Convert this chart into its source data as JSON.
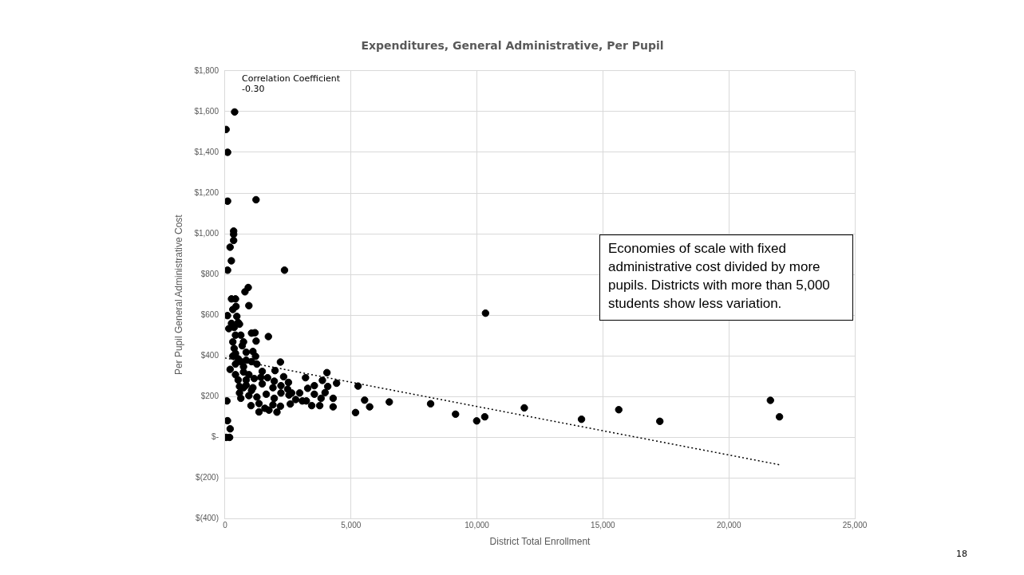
{
  "chart_data": {
    "type": "scatter",
    "title": "Expenditures, General Administrative, Per Pupil",
    "xlabel": "District Total Enrollment",
    "ylabel": "Per Pupil General Administrative Cost",
    "xlim": [
      0,
      25000
    ],
    "xticks": [
      0,
      {
        "value": 5000,
        "label": "5,000"
      },
      {
        "value": 10000,
        "label": "10,000"
      },
      {
        "value": 15000,
        "label": "15,000"
      },
      {
        "value": 20000,
        "label": "20,000"
      },
      {
        "value": 25000,
        "label": "25,000"
      }
    ],
    "ylim": [
      -400,
      1800
    ],
    "yticks": [
      {
        "value": -400,
        "label": "$(400)"
      },
      {
        "value": -200,
        "label": "$(200)"
      },
      {
        "value": 0,
        "label": "$-"
      },
      {
        "value": 200,
        "label": "$200"
      },
      {
        "value": 400,
        "label": "$400"
      },
      {
        "value": 600,
        "label": "$600"
      },
      {
        "value": 800,
        "label": "$800"
      },
      {
        "value": 1000,
        "label": "$1,000"
      },
      {
        "value": 1200,
        "label": "$1,200"
      },
      {
        "value": 1400,
        "label": "$1,400"
      },
      {
        "value": 1600,
        "label": "$1,600"
      },
      {
        "value": 1800,
        "label": "$1,800"
      }
    ],
    "grid": true,
    "legend": false,
    "marker": "circle",
    "series": [
      {
        "type": "scatter",
        "color": "#000000",
        "x": [
          380,
          40,
          100,
          100,
          1230,
          340,
          340,
          340,
          200,
          250,
          100,
          2360,
          790,
          920,
          96,
          202,
          42,
          180,
          10340,
          5280,
          5180,
          5540,
          5740,
          6520,
          8160,
          9150,
          9990,
          10310,
          11880,
          14150,
          15630,
          17260,
          21650,
          22010,
          255,
          414,
          945,
          308,
          435,
          96,
          467,
          255,
          520,
          149,
          361,
          573,
          1051,
          1189,
          1232,
          1720,
          414,
          626,
          308,
          733,
          361,
          680,
          838,
          1105,
          1210,
          2198,
          201,
          414,
          626,
          838,
          1051,
          1264,
          1984,
          1475,
          414,
          733,
          945,
          1157,
          1423,
          1688,
          1953,
          2325,
          2516,
          3195,
          4045,
          3864,
          4427,
          573,
          838,
          1105,
          1475,
          1901,
          2219,
          2484,
          2644,
          2962,
          3281,
          3545,
          3545,
          4077,
          3971,
          626,
          945,
          1264,
          1635,
          1953,
          2219,
          2538,
          2803,
          3068,
          3227,
          3812,
          4290,
          74,
          1030,
          1348,
          1901,
          2198,
          2590,
          1582,
          1742,
          1348,
          2060,
          3440,
          3758,
          4290,
          520,
          733,
          520,
          838,
          573,
          1051,
          733,
          308,
          414
        ],
        "values": [
          1598,
          1512,
          1400,
          1160,
          1167,
          1013,
          997,
          967,
          934,
          867,
          821,
          821,
          715,
          736,
          82,
          42,
          0,
          0,
          610,
          252,
          122,
          183,
          150,
          174,
          165,
          114,
          81,
          101,
          145,
          89,
          136,
          79,
          182,
          101,
          680,
          680,
          647,
          628,
          643,
          598,
          594,
          560,
          564,
          534,
          540,
          556,
          512,
          514,
          473,
          495,
          502,
          502,
          469,
          469,
          437,
          450,
          418,
          422,
          398,
          370,
          334,
          360,
          372,
          379,
          372,
          360,
          328,
          324,
          308,
          321,
          308,
          289,
          295,
          293,
          276,
          298,
          270,
          293,
          318,
          280,
          266,
          250,
          256,
          244,
          263,
          244,
          254,
          237,
          218,
          218,
          241,
          254,
          212,
          250,
          220,
          192,
          205,
          198,
          212,
          192,
          218,
          208,
          186,
          179,
          179,
          192,
          192,
          179,
          156,
          166,
          160,
          153,
          164,
          143,
          134,
          125,
          124,
          156,
          156,
          150,
          386,
          347,
          282,
          282,
          218,
          231,
          244,
          399,
          412
        ]
      },
      {
        "type": "line",
        "color": "#000000",
        "x": [
          0,
          22000
        ],
        "values": [
          390,
          -134
        ],
        "line_style": "dotted",
        "marker": "none"
      }
    ],
    "annotations": [
      "Correlation Coefficient\n-0.30",
      "Economies of scale with fixed administrative cost divided by more pupils. Districts with more than 5,000 students show less variation.",
      "18"
    ]
  }
}
